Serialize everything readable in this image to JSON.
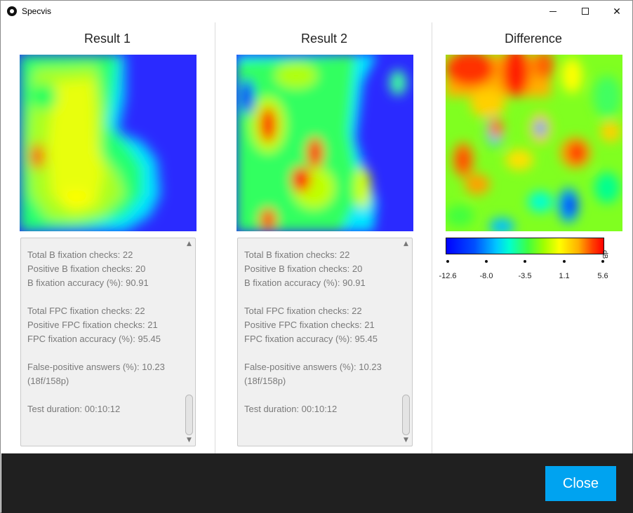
{
  "window": {
    "title": "Specvis",
    "minimize_glyph": "—",
    "maximize_glyph": "☐",
    "close_glyph": "✕"
  },
  "columns": [
    {
      "title": "Result 1"
    },
    {
      "title": "Result 2"
    },
    {
      "title": "Difference"
    }
  ],
  "results": [
    {
      "lines": [
        "Total B fixation checks: 22",
        "Positive B fixation checks: 20",
        "B fixation accuracy (%): 90.91",
        "",
        "Total FPC fixation checks: 22",
        "Positive FPC fixation checks: 21",
        "FPC fixation accuracy (%): 95.45",
        "",
        "False-positive answers (%): 10.23",
        "(18f/158p)",
        "",
        "Test duration: 00:10:12"
      ]
    },
    {
      "lines": [
        "Total B fixation checks: 22",
        "Positive B fixation checks: 20",
        "B fixation accuracy (%): 90.91",
        "",
        "Total FPC fixation checks: 22",
        "Positive FPC fixation checks: 21",
        "FPC fixation accuracy (%): 95.45",
        "",
        "False-positive answers (%): 10.23",
        "(18f/158p)",
        "",
        "Test duration: 00:10:12"
      ]
    }
  ],
  "colorbar": {
    "unit": "dB",
    "ticks": [
      "-12.6",
      "-8.0",
      "-3.5",
      "1.1",
      "5.6"
    ]
  },
  "footer": {
    "close_label": "Close"
  },
  "colors": {
    "footer_bg": "#202020",
    "close_button": "#00a3f0"
  }
}
